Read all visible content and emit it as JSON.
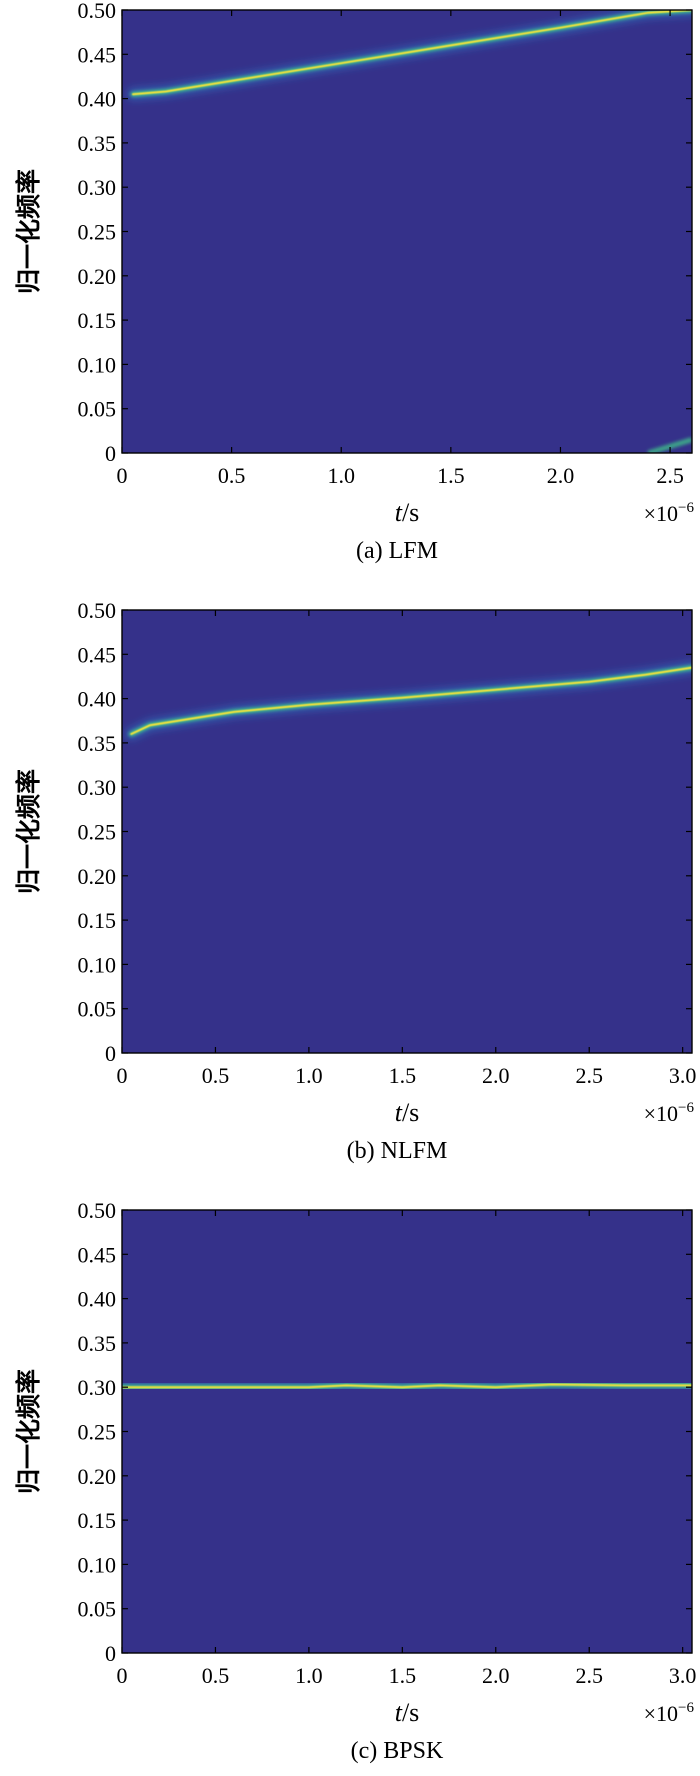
{
  "colors": {
    "background": "#35318a",
    "ridge_core": "#f5e23a",
    "ridge_mid": "#3fc08a",
    "ridge_outer": "#2a8fd6",
    "axis": "#000000"
  },
  "chart_data": [
    {
      "type": "heatmap",
      "caption": "(a) LFM",
      "xlabel_italic": "t",
      "xlabel_rest": "/s",
      "ylabel": "归一化频率",
      "x_multiplier_base": "×10",
      "x_multiplier_exp": "−6",
      "xlim": [
        0,
        2.6
      ],
      "ylim": [
        0,
        0.5
      ],
      "xticks": [
        0,
        0.5,
        1.0,
        1.5,
        2.0,
        2.5
      ],
      "xtick_labels": [
        "0",
        "0.5",
        "1.0",
        "1.5",
        "2.0",
        "2.5"
      ],
      "yticks": [
        0,
        0.05,
        0.1,
        0.15,
        0.2,
        0.25,
        0.3,
        0.35,
        0.4,
        0.45,
        0.5
      ],
      "ytick_labels": [
        "0",
        "0.05",
        "0.10",
        "0.15",
        "0.20",
        "0.25",
        "0.30",
        "0.35",
        "0.40",
        "0.45",
        "0.50"
      ],
      "ridge": {
        "x": [
          0.05,
          0.2,
          0.5,
          1.0,
          1.5,
          2.0,
          2.4,
          2.6
        ],
        "y": [
          0.405,
          0.408,
          0.42,
          0.44,
          0.46,
          0.48,
          0.497,
          0.5
        ]
      },
      "ridge_tail": {
        "x": [
          2.4,
          2.6
        ],
        "y": [
          0.0,
          0.015
        ]
      }
    },
    {
      "type": "heatmap",
      "caption": "(b) NLFM",
      "xlabel_italic": "t",
      "xlabel_rest": "/s",
      "ylabel": "归一化频率",
      "x_multiplier_base": "×10",
      "x_multiplier_exp": "−6",
      "xlim": [
        0,
        3.05
      ],
      "ylim": [
        0,
        0.5
      ],
      "xticks": [
        0,
        0.5,
        1.0,
        1.5,
        2.0,
        2.5,
        3.0
      ],
      "xtick_labels": [
        "0",
        "0.5",
        "1.0",
        "1.5",
        "2.0",
        "2.5",
        "3.0"
      ],
      "yticks": [
        0,
        0.05,
        0.1,
        0.15,
        0.2,
        0.25,
        0.3,
        0.35,
        0.4,
        0.45,
        0.5
      ],
      "ytick_labels": [
        "0",
        "0.05",
        "0.10",
        "0.15",
        "0.20",
        "0.25",
        "0.30",
        "0.35",
        "0.40",
        "0.45",
        "0.50"
      ],
      "ridge": {
        "x": [
          0.05,
          0.15,
          0.3,
          0.6,
          1.0,
          1.5,
          2.0,
          2.5,
          2.8,
          3.05
        ],
        "y": [
          0.36,
          0.37,
          0.375,
          0.385,
          0.393,
          0.401,
          0.41,
          0.419,
          0.427,
          0.435
        ]
      }
    },
    {
      "type": "heatmap",
      "caption": "(c) BPSK",
      "xlabel_italic": "t",
      "xlabel_rest": "/s",
      "ylabel": "归一化频率",
      "x_multiplier_base": "×10",
      "x_multiplier_exp": "−6",
      "xlim": [
        0,
        3.05
      ],
      "ylim": [
        0,
        0.5
      ],
      "xticks": [
        0,
        0.5,
        1.0,
        1.5,
        2.0,
        2.5,
        3.0
      ],
      "xtick_labels": [
        "0",
        "0.5",
        "1.0",
        "1.5",
        "2.0",
        "2.5",
        "3.0"
      ],
      "yticks": [
        0,
        0.05,
        0.1,
        0.15,
        0.2,
        0.25,
        0.3,
        0.35,
        0.4,
        0.45,
        0.5
      ],
      "ytick_labels": [
        "0",
        "0.05",
        "0.10",
        "0.15",
        "0.20",
        "0.25",
        "0.30",
        "0.35",
        "0.40",
        "0.45",
        "0.50"
      ],
      "ridge": {
        "x": [
          0.0,
          1.0,
          1.2,
          1.5,
          1.7,
          2.0,
          2.3,
          2.7,
          3.05
        ],
        "y": [
          0.3,
          0.3,
          0.302,
          0.3,
          0.302,
          0.3,
          0.303,
          0.302,
          0.302
        ]
      }
    }
  ]
}
